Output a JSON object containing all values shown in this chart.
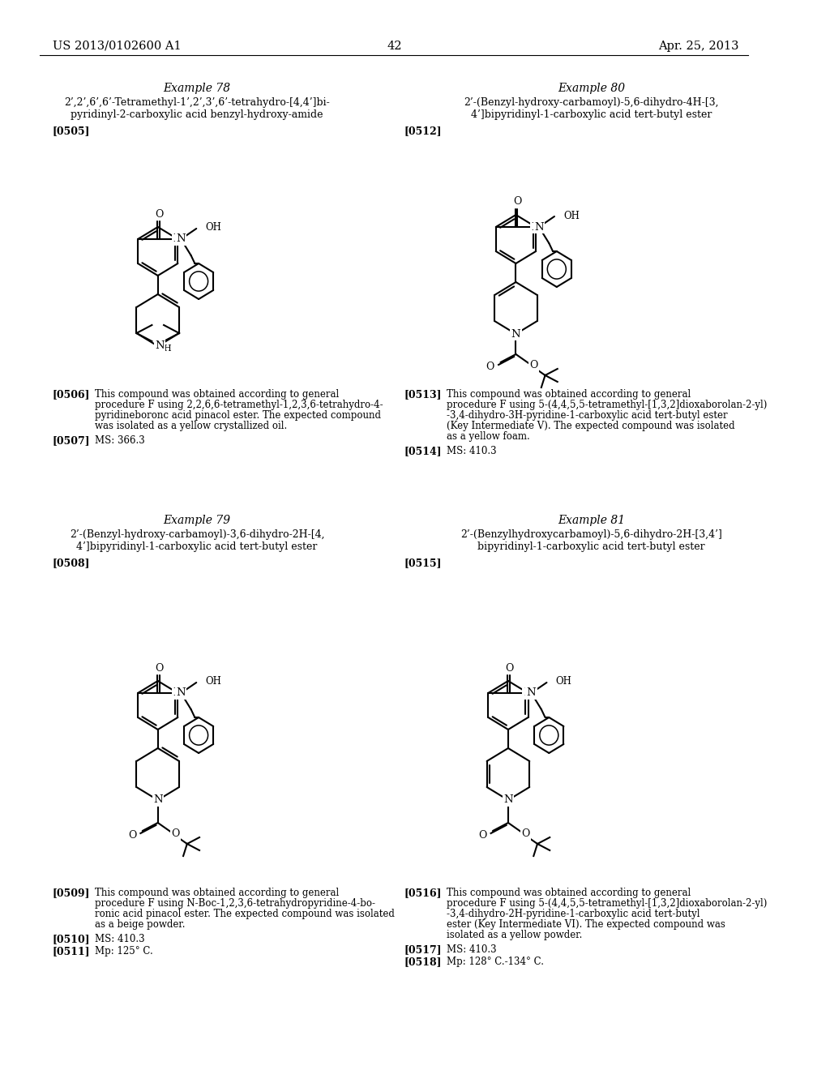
{
  "bg": "#ffffff",
  "header_left": "US 2013/0102600 A1",
  "header_right": "Apr. 25, 2013",
  "page_num": "42",
  "ex78_title": "Example 78",
  "ex78_name1": "2’,2’,6’,6’-Tetramethyl-1’,2’,3’,6’-tetrahydro-[4,4’]bi-",
  "ex78_name2": "pyridinyl-2-carboxylic acid benzyl-hydroxy-amide",
  "ex78_p1": "[0505]",
  "ex78_p2tag": "[0506]",
  "ex78_p2": "This compound was obtained according to general procedure F using 2,2,6,6-tetramethyl-1,2,3,6-tetrahydro-4-pyridineboronc acid pinacol ester. The expected compound was isolated as a yellow crystallized oil.",
  "ex78_p3tag": "[0507]",
  "ex78_p3": "MS: 366.3",
  "ex79_title": "Example 79",
  "ex79_name1": "2’-(Benzyl-hydroxy-carbamoyl)-3,6-dihydro-2H-[4,",
  "ex79_name2": "4’]bipyridinyl-1-carboxylic acid tert-butyl ester",
  "ex79_p1": "[0508]",
  "ex79_p2tag": "[0509]",
  "ex79_p2": "This compound was obtained according to general procedure F using N-Boc-1,2,3,6-tetrahydropyridine-4-boronic acid pinacol ester. The expected compound was isolated as a beige powder.",
  "ex79_p3tag": "[0510]",
  "ex79_p3": "MS: 410.3",
  "ex79_p4tag": "[0511]",
  "ex79_p4": "Mp: 125° C.",
  "ex80_title": "Example 80",
  "ex80_name1": "2’-(Benzyl-hydroxy-carbamoyl)-5,6-dihydro-4H-[3,",
  "ex80_name2": "4’]bipyridinyl-1-carboxylic acid tert-butyl ester",
  "ex80_p1": "[0512]",
  "ex80_p2tag": "[0513]",
  "ex80_p2": "This compound was obtained according to general procedure F using 5-(4,4,5,5-tetramethyl-[1,3,2]dioxaborolan-2-yl)-3,4-dihydro-3H-pyridine-1-carboxylic acid tert-butyl ester (Key Intermediate V). The expected compound was isolated as a yellow foam.",
  "ex80_p3tag": "[0514]",
  "ex80_p3": "MS: 410.3",
  "ex81_title": "Example 81",
  "ex81_name1": "2’-(Benzylhydroxycarbamoyl)-5,6-dihydro-2H-[3,4’]",
  "ex81_name2": "bipyridinyl-1-carboxylic acid tert-butyl ester",
  "ex81_p1": "[0515]",
  "ex81_p2tag": "[0516]",
  "ex81_p2": "This compound was obtained according to general procedure F using 5-(4,4,5,5-tetramethyl-[1,3,2]dioxaborolan-2-yl)-3,4-dihydro-2H-pyridine-1-carboxylic acid tert-butyl ester (Key Intermediate VI). The expected compound was isolated as a yellow powder.",
  "ex81_p3tag": "[0517]",
  "ex81_p3": "MS: 410.3",
  "ex81_p4tag": "[0518]",
  "ex81_p4": "Mp: 128° C.-134° C."
}
